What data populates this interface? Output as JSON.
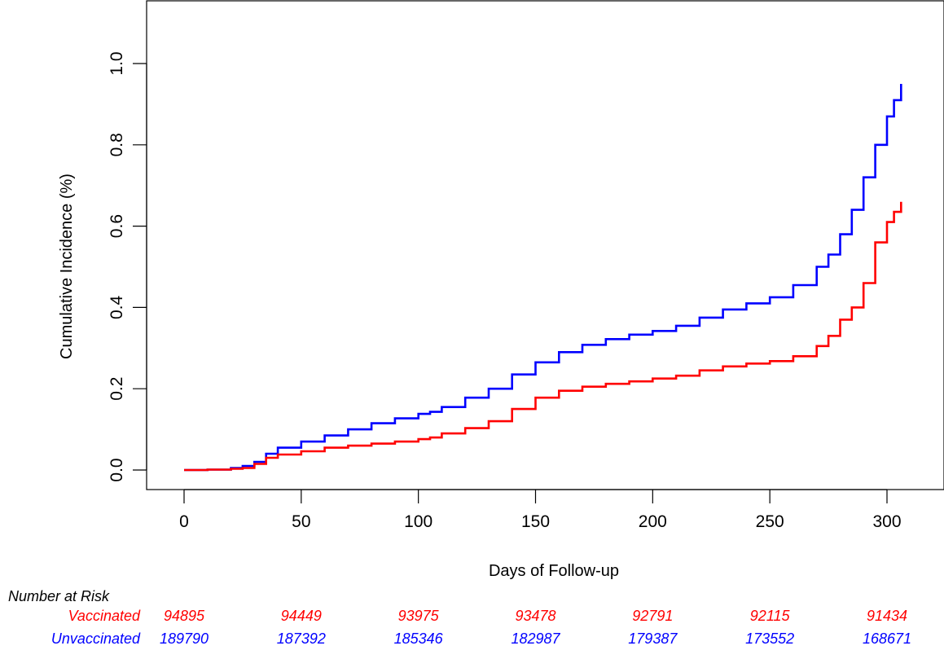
{
  "chart_data": {
    "type": "line",
    "title": "",
    "xlabel": "Days of Follow-up",
    "ylabel": "Cumulative Incidence (%)",
    "xlim": [
      0,
      306
    ],
    "ylim": [
      0,
      1.0
    ],
    "xticks": [
      0,
      50,
      100,
      150,
      200,
      250,
      300
    ],
    "yticks": [
      0.0,
      0.2,
      0.4,
      0.6,
      0.8,
      1.0
    ],
    "xtick_labels": [
      "0",
      "50",
      "100",
      "150",
      "200",
      "250",
      "300"
    ],
    "ytick_labels": [
      "0.0",
      "0.2",
      "0.4",
      "0.6",
      "0.8",
      "1.0"
    ],
    "grid": false,
    "legend": "none",
    "series": [
      {
        "color": "#0000ff",
        "x": [
          0,
          10,
          20,
          25,
          30,
          35,
          40,
          50,
          60,
          70,
          80,
          90,
          100,
          105,
          110,
          120,
          130,
          140,
          150,
          160,
          170,
          180,
          190,
          200,
          210,
          220,
          230,
          240,
          250,
          260,
          270,
          275,
          280,
          285,
          290,
          295,
          300,
          303,
          306
        ],
        "y": [
          0,
          0.001,
          0.005,
          0.01,
          0.02,
          0.04,
          0.055,
          0.07,
          0.085,
          0.1,
          0.115,
          0.127,
          0.138,
          0.143,
          0.155,
          0.178,
          0.2,
          0.235,
          0.265,
          0.29,
          0.308,
          0.322,
          0.333,
          0.342,
          0.355,
          0.375,
          0.395,
          0.41,
          0.425,
          0.455,
          0.5,
          0.53,
          0.58,
          0.64,
          0.72,
          0.8,
          0.87,
          0.91,
          0.95
        ]
      },
      {
        "color": "#ff0000",
        "x": [
          0,
          10,
          20,
          25,
          30,
          35,
          40,
          50,
          60,
          70,
          80,
          90,
          100,
          105,
          110,
          120,
          130,
          140,
          150,
          160,
          170,
          180,
          190,
          200,
          210,
          220,
          230,
          240,
          250,
          260,
          270,
          275,
          280,
          285,
          290,
          295,
          300,
          303,
          306
        ],
        "y": [
          0,
          0.001,
          0.003,
          0.005,
          0.015,
          0.03,
          0.038,
          0.046,
          0.055,
          0.06,
          0.065,
          0.07,
          0.076,
          0.08,
          0.09,
          0.103,
          0.12,
          0.15,
          0.178,
          0.195,
          0.205,
          0.212,
          0.218,
          0.225,
          0.232,
          0.245,
          0.255,
          0.262,
          0.268,
          0.28,
          0.305,
          0.33,
          0.37,
          0.4,
          0.46,
          0.56,
          0.61,
          0.635,
          0.66
        ]
      }
    ],
    "risk_table": {
      "title": "Number at Risk",
      "times": [
        0,
        50,
        100,
        150,
        200,
        250,
        300
      ],
      "rows": [
        {
          "label": "Vaccinated",
          "color": "#ff0000",
          "values": [
            "94895",
            "94449",
            "93975",
            "93478",
            "92791",
            "92115",
            "91434"
          ]
        },
        {
          "label": "Unvaccinated",
          "color": "#0000ff",
          "values": [
            "189790",
            "187392",
            "185346",
            "182987",
            "179387",
            "173552",
            "168671"
          ]
        }
      ]
    }
  }
}
